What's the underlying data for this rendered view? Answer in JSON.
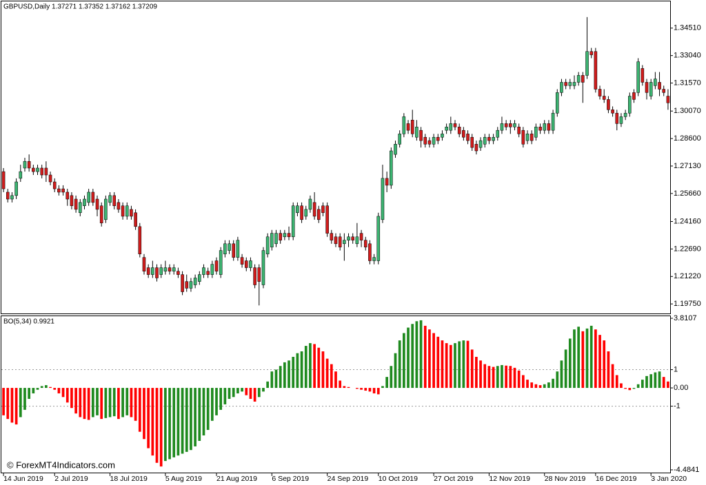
{
  "chart_data": [
    {
      "type": "candlestick",
      "title": "GBPUSD,Daily  1.37271 1.37352 1.37162 1.37209",
      "up_color": "#3cb371",
      "down_color": "#d01c1c",
      "wick_color": "#000000",
      "ylim": [
        1.1924,
        1.3594
      ],
      "yticks": [
        {
          "value": 1.3451,
          "label": "1.34510"
        },
        {
          "value": 1.3304,
          "label": "1.33040"
        },
        {
          "value": 1.3157,
          "label": "1.31570"
        },
        {
          "value": 1.3007,
          "label": "1.30070"
        },
        {
          "value": 1.286,
          "label": "1.28600"
        },
        {
          "value": 1.2713,
          "label": "1.27130"
        },
        {
          "value": 1.2566,
          "label": "1.25660"
        },
        {
          "value": 1.2416,
          "label": "1.24160"
        },
        {
          "value": 1.2269,
          "label": "1.22690"
        },
        {
          "value": 1.2122,
          "label": "1.21220"
        },
        {
          "value": 1.1975,
          "label": "1.19750"
        }
      ],
      "open": [
        1.2683,
        1.2573,
        1.2536,
        1.2555,
        1.2647,
        1.2702,
        1.2738,
        1.2702,
        1.2683,
        1.2702,
        1.2702,
        1.2665,
        1.2628,
        1.2591,
        1.2591,
        1.2573,
        1.2555,
        1.2536,
        1.2463,
        1.25,
        1.2518,
        1.2573,
        1.2536,
        1.25,
        1.2426,
        1.2518,
        1.2555,
        1.2518,
        1.25,
        1.2444,
        1.2481,
        1.2463,
        1.2389,
        1.2224,
        1.2169,
        1.2132,
        1.2169,
        1.2132,
        1.215,
        1.2169,
        1.215,
        1.215,
        1.2132,
        1.2095,
        1.2059,
        1.2077,
        1.2095,
        1.2132,
        1.215,
        1.2132,
        1.2206,
        1.2132,
        1.2242,
        1.2261,
        1.2297,
        1.2224,
        1.2224,
        1.2206,
        1.2169,
        1.2169,
        1.2169,
        1.2077,
        1.2242,
        1.2279,
        1.2297,
        1.2353,
        1.2334,
        1.2353,
        1.2334,
        1.2463,
        1.25,
        1.2444,
        1.2481,
        1.2518,
        1.2481,
        1.25,
        1.25,
        1.2353,
        1.2334,
        1.2334,
        1.2297,
        1.2316,
        1.2334,
        1.2297,
        1.2353,
        1.2316,
        1.2297,
        1.2206,
        1.2206,
        1.2426,
        1.2647,
        1.261,
        1.2775,
        1.283,
        1.2885,
        1.294,
        1.2959,
        1.2867,
        1.2904,
        1.2867,
        1.2849,
        1.283,
        1.2867,
        1.2867,
        1.2904,
        1.2904,
        1.294,
        1.2922,
        1.2904,
        1.2885,
        1.2867,
        1.283,
        1.2812,
        1.283,
        1.2867,
        1.2849,
        1.2867,
        1.2904,
        1.294,
        1.294,
        1.2922,
        1.2922,
        1.2904,
        1.2849,
        1.2885,
        1.2867,
        1.2922,
        1.2904,
        1.294,
        1.2904,
        1.2996,
        1.3106,
        1.3161,
        1.3143,
        1.3143,
        1.3161,
        1.3198,
        1.3198,
        1.3326,
        1.3326,
        1.3124,
        1.3087,
        1.3069,
        1.3014,
        1.2996,
        1.294,
        1.2977,
        1.2996,
        1.3106,
        1.3106,
        1.3235,
        1.3161,
        1.3087,
        1.3143,
        1.3161,
        1.3124,
        1.3087
      ],
      "high": [
        1.2702,
        1.2591,
        1.2573,
        1.2647,
        1.272,
        1.2757,
        1.2775,
        1.272,
        1.272,
        1.272,
        1.2738,
        1.2683,
        1.2647,
        1.261,
        1.261,
        1.2591,
        1.2573,
        1.2555,
        1.2536,
        1.2555,
        1.2591,
        1.2591,
        1.2555,
        1.2518,
        1.2555,
        1.2573,
        1.2573,
        1.2536,
        1.2518,
        1.2518,
        1.25,
        1.2481,
        1.2408,
        1.2242,
        1.2187,
        1.2206,
        1.2187,
        1.2187,
        1.2206,
        1.2187,
        1.2187,
        1.2169,
        1.215,
        1.2132,
        1.2114,
        1.2132,
        1.215,
        1.2187,
        1.2169,
        1.2206,
        1.2224,
        1.2279,
        1.2316,
        1.2316,
        1.2316,
        1.2334,
        1.2242,
        1.2224,
        1.2224,
        1.2187,
        1.2187,
        1.2279,
        1.2353,
        1.2371,
        1.2371,
        1.2371,
        1.2371,
        1.2389,
        1.2518,
        1.2518,
        1.2518,
        1.25,
        1.2555,
        1.2573,
        1.25,
        1.2518,
        1.2518,
        1.2371,
        1.2353,
        1.2353,
        1.2353,
        1.2353,
        1.2353,
        1.2408,
        1.2371,
        1.2334,
        1.2316,
        1.2242,
        1.2463,
        1.272,
        1.2683,
        1.2812,
        1.2849,
        1.2904,
        1.2996,
        1.2959,
        1.3014,
        1.2959,
        1.2922,
        1.2885,
        1.2867,
        1.2885,
        1.2885,
        1.2904,
        1.294,
        1.2977,
        1.2959,
        1.294,
        1.2922,
        1.2904,
        1.2885,
        1.2849,
        1.2867,
        1.2885,
        1.2885,
        1.2885,
        1.2922,
        1.2977,
        1.2959,
        1.2959,
        1.2959,
        1.294,
        1.2922,
        1.2904,
        1.2904,
        1.294,
        1.294,
        1.2959,
        1.2959,
        1.3014,
        1.3124,
        1.3179,
        1.3179,
        1.3179,
        1.3198,
        1.3216,
        1.3216,
        1.351,
        1.3345,
        1.3345,
        1.3143,
        1.3124,
        1.3087,
        1.3032,
        1.3014,
        1.2996,
        1.3014,
        1.3106,
        1.3124,
        1.329,
        1.3253,
        1.3179,
        1.3179,
        1.3216,
        1.3216,
        1.3143,
        1.3124
      ],
      "low": [
        1.2573,
        1.2518,
        1.2518,
        1.2536,
        1.2628,
        1.2683,
        1.2683,
        1.2665,
        1.2665,
        1.2647,
        1.2628,
        1.261,
        1.2573,
        1.2555,
        1.2555,
        1.25,
        1.2481,
        1.2463,
        1.2444,
        1.2481,
        1.25,
        1.25,
        1.2444,
        1.2389,
        1.2408,
        1.25,
        1.2481,
        1.2463,
        1.2426,
        1.2426,
        1.2426,
        1.2371,
        1.2224,
        1.2132,
        1.2114,
        1.2114,
        1.2095,
        1.2114,
        1.2132,
        1.2132,
        1.2132,
        1.2114,
        1.2022,
        1.204,
        1.204,
        1.2059,
        1.2077,
        1.2114,
        1.2114,
        1.2114,
        1.2132,
        1.2114,
        1.2224,
        1.2242,
        1.2206,
        1.2206,
        1.2169,
        1.215,
        1.215,
        1.2059,
        1.1967,
        1.2059,
        1.2224,
        1.2261,
        1.2279,
        1.2297,
        1.2316,
        1.2316,
        1.2316,
        1.2444,
        1.2408,
        1.2426,
        1.2463,
        1.2426,
        1.2408,
        1.2444,
        1.2334,
        1.2297,
        1.2279,
        1.2261,
        1.2206,
        1.2279,
        1.2297,
        1.2279,
        1.2279,
        1.2261,
        1.2187,
        1.2187,
        1.2187,
        1.2408,
        1.2573,
        1.2591,
        1.2757,
        1.2812,
        1.2867,
        1.2885,
        1.2867,
        1.2849,
        1.2812,
        1.2812,
        1.2812,
        1.2812,
        1.283,
        1.2849,
        1.2885,
        1.2885,
        1.2904,
        1.2867,
        1.2849,
        1.283,
        1.2794,
        1.2775,
        1.2794,
        1.2812,
        1.283,
        1.283,
        1.2849,
        1.2885,
        1.2904,
        1.2885,
        1.2904,
        1.2867,
        1.2812,
        1.283,
        1.283,
        1.2849,
        1.2885,
        1.2885,
        1.2885,
        1.2885,
        1.2977,
        1.3087,
        1.3124,
        1.3124,
        1.3124,
        1.3143,
        1.3051,
        1.3179,
        1.329,
        1.3106,
        1.3069,
        1.3051,
        1.2996,
        1.2977,
        1.2904,
        1.2922,
        1.2959,
        1.2977,
        1.3051,
        1.3087,
        1.3143,
        1.3069,
        1.3069,
        1.3124,
        1.3087,
        1.3087,
        1.3014
      ],
      "close": [
        1.2591,
        1.2536,
        1.2555,
        1.2628,
        1.2683,
        1.2738,
        1.2702,
        1.2683,
        1.2702,
        1.2665,
        1.2665,
        1.2628,
        1.2591,
        1.2573,
        1.2573,
        1.2536,
        1.25,
        1.2481,
        1.2518,
        1.2536,
        1.2573,
        1.2518,
        1.2481,
        1.2408,
        1.2536,
        1.2555,
        1.25,
        1.2481,
        1.2444,
        1.25,
        1.2444,
        1.2389,
        1.2242,
        1.215,
        1.2132,
        1.2169,
        1.2114,
        1.2169,
        1.2169,
        1.215,
        1.2169,
        1.2132,
        1.204,
        1.2059,
        1.2095,
        1.2114,
        1.2132,
        1.2169,
        1.2132,
        1.2187,
        1.215,
        1.2261,
        1.2297,
        1.2297,
        1.2224,
        1.2316,
        1.2187,
        1.2169,
        1.2206,
        1.2077,
        1.2095,
        1.2261,
        1.2334,
        1.2353,
        1.2353,
        1.2316,
        1.2353,
        1.2334,
        1.25,
        1.25,
        1.2426,
        1.2481,
        1.2536,
        1.2444,
        1.2426,
        1.2463,
        1.2353,
        1.2316,
        1.2297,
        1.2279,
        1.2316,
        1.2334,
        1.2316,
        1.2334,
        1.2316,
        1.2279,
        1.2206,
        1.2224,
        1.2444,
        1.2647,
        1.261,
        1.2794,
        1.283,
        1.2885,
        1.2977,
        1.2904,
        1.2885,
        1.2922,
        1.2849,
        1.283,
        1.283,
        1.2867,
        1.2849,
        1.2885,
        1.2922,
        1.294,
        1.2922,
        1.2885,
        1.2867,
        1.2849,
        1.2812,
        1.2794,
        1.2849,
        1.2867,
        1.2849,
        1.2867,
        1.2904,
        1.294,
        1.2922,
        1.2922,
        1.294,
        1.2885,
        1.283,
        1.2885,
        1.2849,
        1.2922,
        1.2904,
        1.294,
        1.2904,
        1.2996,
        1.3106,
        1.3161,
        1.3143,
        1.3161,
        1.3161,
        1.3198,
        1.3161,
        1.3326,
        1.3308,
        1.3124,
        1.3087,
        1.3069,
        1.3014,
        1.2996,
        1.294,
        1.2977,
        1.2996,
        1.3087,
        1.3069,
        1.3271,
        1.3161,
        1.3106,
        1.3161,
        1.3179,
        1.3124,
        1.3106,
        1.3051
      ]
    },
    {
      "type": "histogram",
      "title": "BO(5,34) 0.9921",
      "annotation": "© ForexMT4Indicators.com",
      "up_color": "#1f8a1f",
      "down_color": "#ff0000",
      "ylim": [
        -4.4841,
        3.8107
      ],
      "yticks": [
        3.8107,
        1,
        {
          "value": 0,
          "label": "0.00"
        },
        -1,
        -4.4841
      ],
      "values": [
        -1.5,
        -1.7,
        -1.9,
        -2.0,
        -1.6,
        -1.2,
        -0.6,
        -0.3,
        -0.1,
        0.1,
        0.15,
        0.05,
        -0.1,
        -0.3,
        -0.5,
        -0.8,
        -1.1,
        -1.4,
        -1.6,
        -1.7,
        -1.75,
        -1.6,
        -1.5,
        -1.7,
        -1.65,
        -1.6,
        -1.55,
        -1.7,
        -1.6,
        -1.5,
        -1.6,
        -1.8,
        -2.4,
        -2.8,
        -3.3,
        -3.7,
        -4.1,
        -4.3,
        -4.0,
        -3.9,
        -3.8,
        -3.7,
        -3.6,
        -3.5,
        -3.4,
        -3.2,
        -2.9,
        -2.6,
        -2.3,
        -1.8,
        -1.5,
        -1.2,
        -0.9,
        -0.6,
        -0.5,
        -0.3,
        -0.2,
        -0.4,
        -0.6,
        -0.75,
        -0.5,
        -0.2,
        0.35,
        0.9,
        1.0,
        1.2,
        1.4,
        1.5,
        1.7,
        1.9,
        2.0,
        2.3,
        2.45,
        2.4,
        2.2,
        2.0,
        1.6,
        1.3,
        0.9,
        0.4,
        0.1,
        0.05,
        0.0,
        -0.05,
        -0.1,
        -0.15,
        -0.2,
        -0.3,
        -0.35,
        0.1,
        0.6,
        1.2,
        1.9,
        2.6,
        3.0,
        3.3,
        3.5,
        3.65,
        3.7,
        3.4,
        3.2,
        3.0,
        2.8,
        2.6,
        2.45,
        2.35,
        2.45,
        2.55,
        2.6,
        2.58,
        2.1,
        1.7,
        1.5,
        1.3,
        1.2,
        1.15,
        1.2,
        1.25,
        1.22,
        1.2,
        1.1,
        0.95,
        0.7,
        0.45,
        0.3,
        0.2,
        0.15,
        0.2,
        0.3,
        0.5,
        0.9,
        1.5,
        2.1,
        2.7,
        3.2,
        3.35,
        3.1,
        3.25,
        3.4,
        3.2,
        2.9,
        2.6,
        2.0,
        1.3,
        0.7,
        0.25,
        -0.05,
        -0.12,
        -0.05,
        0.2,
        0.45,
        0.65,
        0.75,
        0.85,
        0.9,
        0.6,
        0.35
      ],
      "xticks": [
        {
          "value": 0,
          "label": "14 Jun 2019"
        },
        {
          "value": 12,
          "label": "2 Jul 2019"
        },
        {
          "value": 25,
          "label": "18 Jul 2019"
        },
        {
          "value": 38,
          "label": "5 Aug 2019"
        },
        {
          "value": 50,
          "label": "21 Aug 2019"
        },
        {
          "value": 63,
          "label": "6 Sep 2019"
        },
        {
          "value": 76,
          "label": "24 Sep 2019"
        },
        {
          "value": 88,
          "label": "10 Oct 2019"
        },
        {
          "value": 101,
          "label": "27 Oct 2019"
        },
        {
          "value": 114,
          "label": "12 Nov 2019"
        },
        {
          "value": 127,
          "label": "28 Nov 2019"
        },
        {
          "value": 139,
          "label": "16 Dec 2019"
        },
        {
          "value": 152,
          "label": "3 Jan 2020"
        }
      ]
    }
  ]
}
